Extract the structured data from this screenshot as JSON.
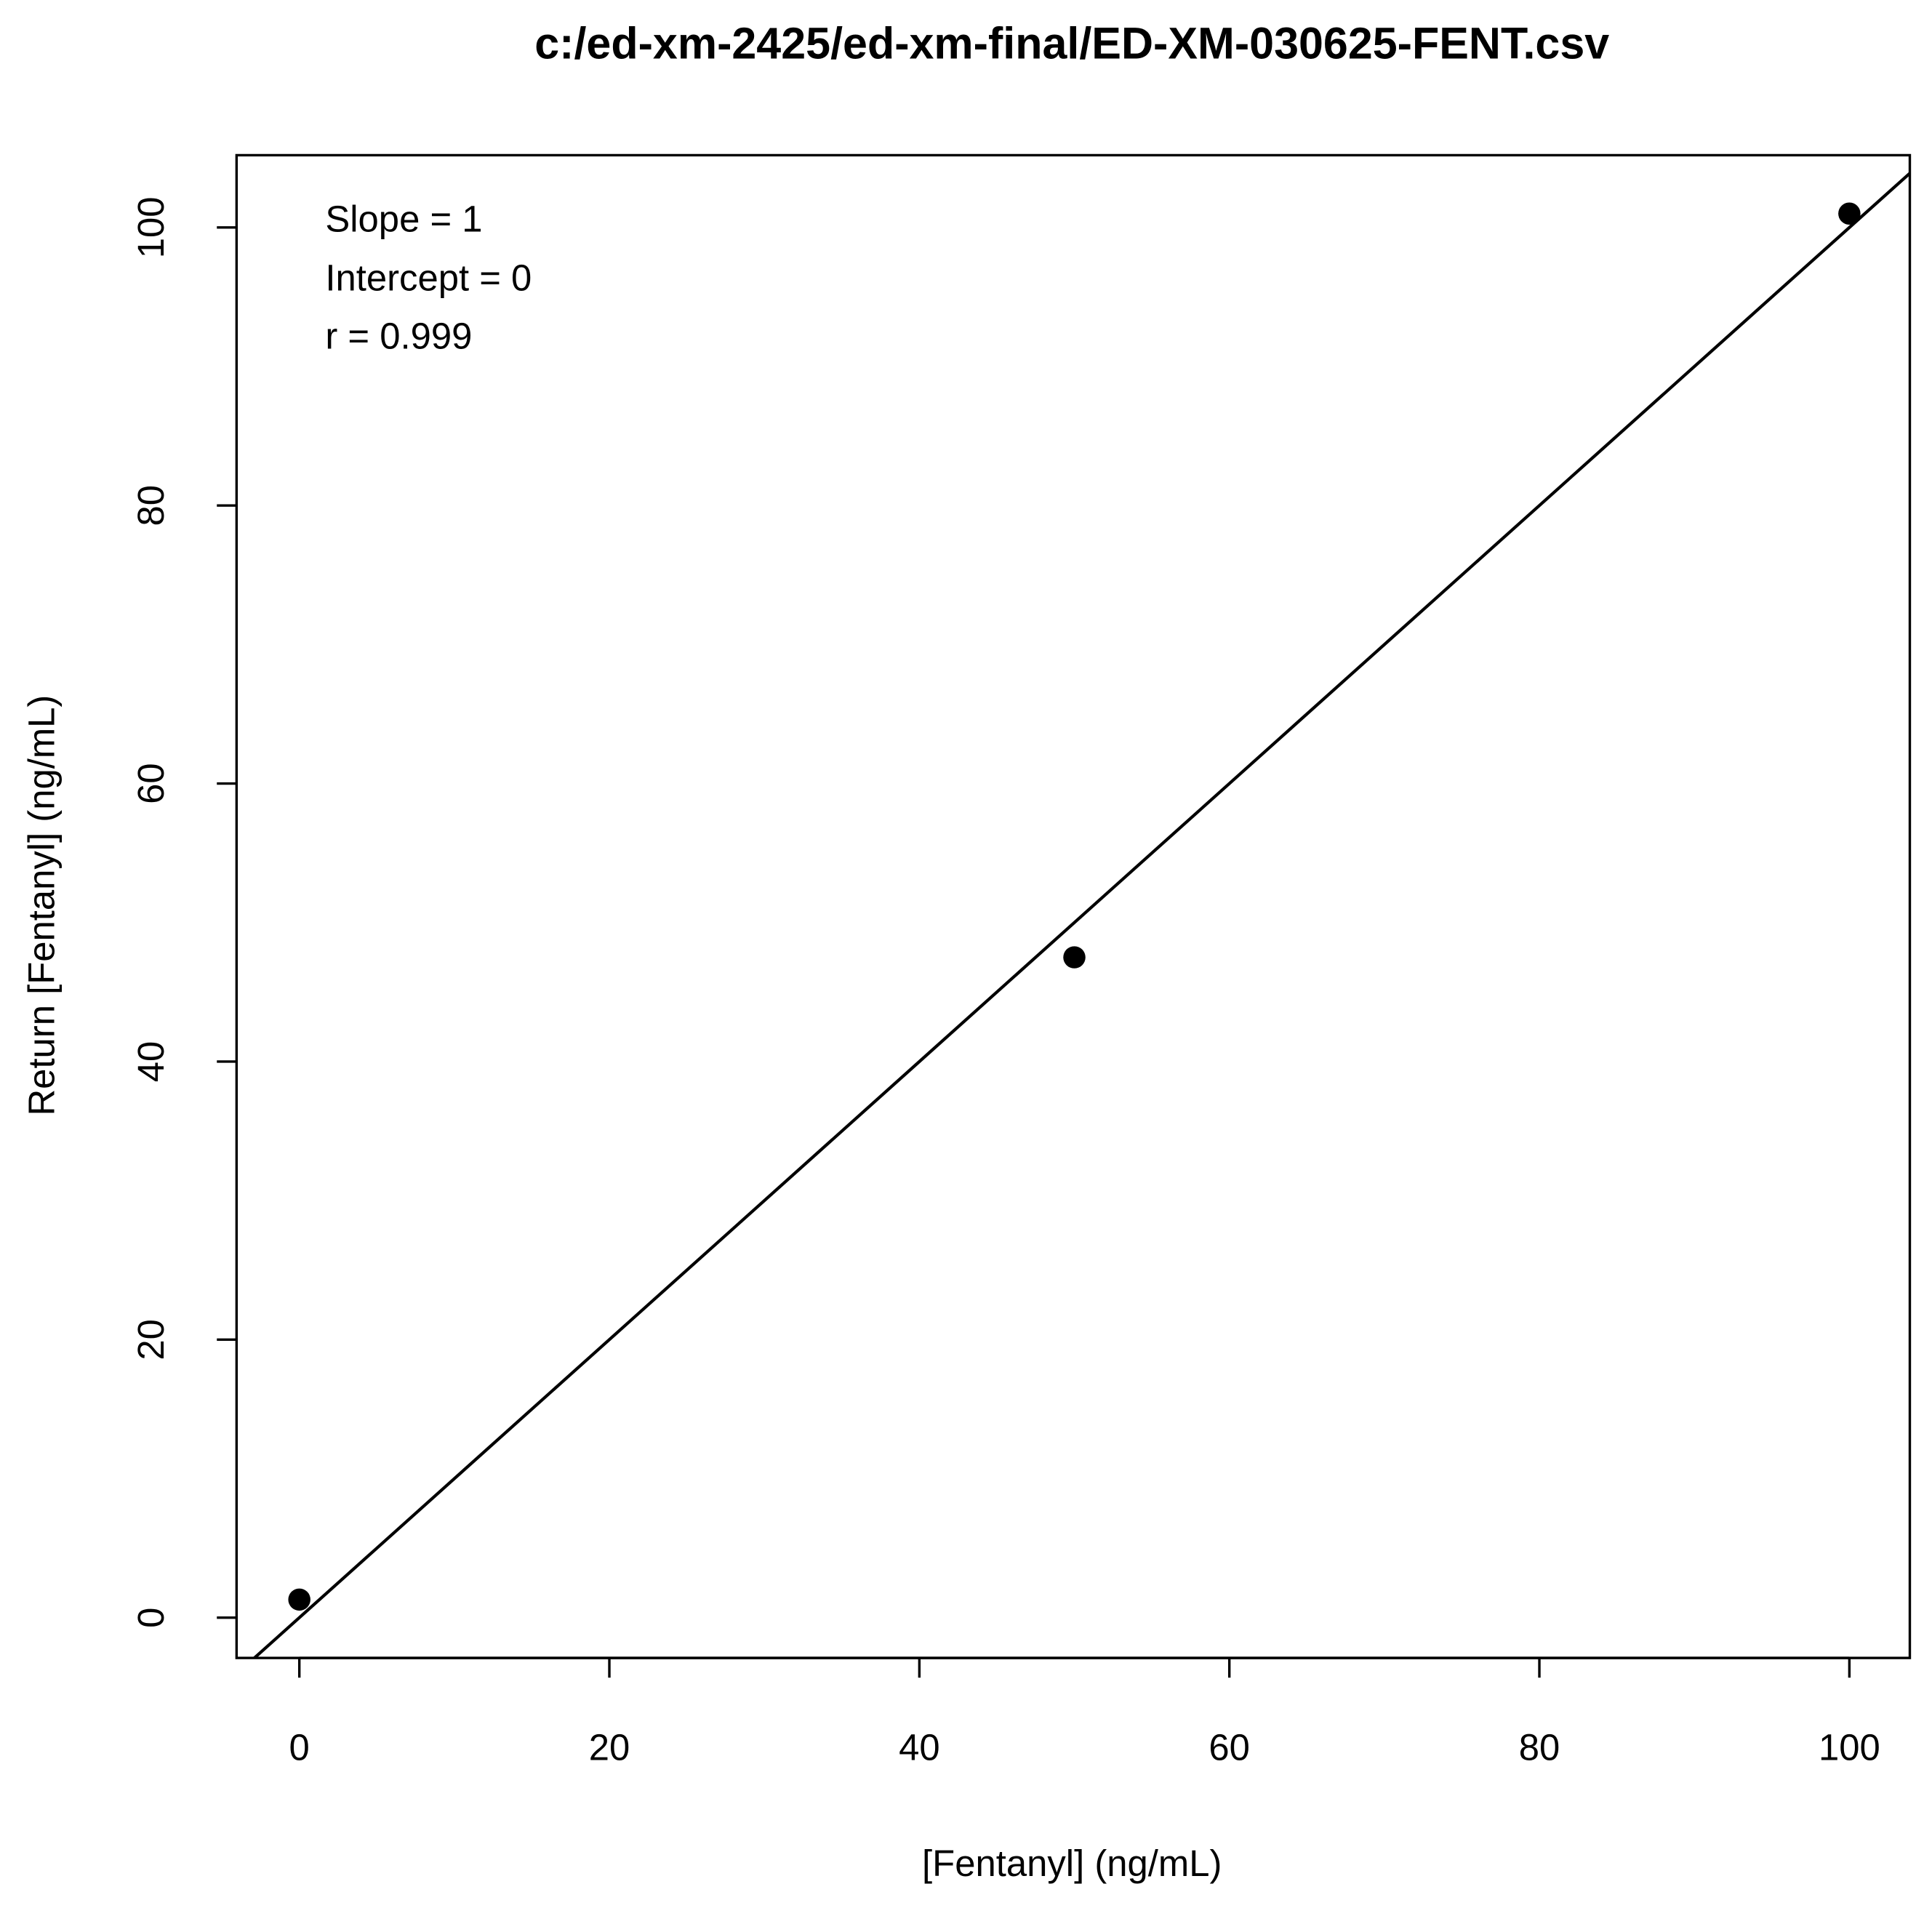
{
  "chart_data": {
    "type": "scatter",
    "title": "c:/ed-xm-2425/ed-xm-final/ED-XM-030625-FENT.csv",
    "xlabel": "[Fentanyl] (ng/mL)",
    "ylabel": "Return [Fentanyl] (ng/mL)",
    "annotations": [
      "Slope = 1",
      "Intercept = 0",
      "r = 0.999"
    ],
    "x": [
      0,
      50,
      100
    ],
    "values": [
      1.3,
      47.5,
      101
    ],
    "color": "#000000",
    "fit_line": {
      "slope": 1,
      "intercept": 0
    },
    "xlim": [
      -4.05,
      103.9
    ],
    "ylim": [
      -2.9,
      105.2
    ],
    "xticks": [
      0,
      20,
      40,
      60,
      80,
      100
    ],
    "yticks": [
      0,
      20,
      40,
      60,
      80,
      100
    ]
  }
}
